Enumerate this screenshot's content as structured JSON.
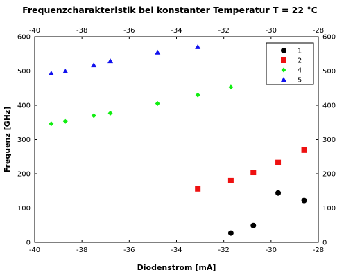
{
  "chart_data": {
    "type": "scatter",
    "title": "Frequenzcharakteristik bei konstanter Temperatur T = 22 °C",
    "xlabel": "Diodenstrom [mA]",
    "ylabel": "Frequenz [GHz]",
    "xlim": [
      -40,
      -28
    ],
    "ylim": [
      0,
      600
    ],
    "x_ticks": [
      -40,
      -38,
      -36,
      -34,
      -32,
      -30,
      -28
    ],
    "y_ticks": [
      0,
      100,
      200,
      300,
      400,
      500,
      600
    ],
    "mirror_axes": true,
    "grid": false,
    "legend_position": "top-right",
    "series": [
      {
        "name": "1",
        "marker": "circle",
        "color": "#000000",
        "x": [
          -31.7,
          -30.75,
          -29.7,
          -28.6
        ],
        "y": [
          27,
          49,
          144,
          122
        ]
      },
      {
        "name": "2",
        "marker": "square",
        "color": "#ee1111",
        "x": [
          -33.1,
          -31.7,
          -30.75,
          -29.7,
          -28.6
        ],
        "y": [
          156,
          180,
          204,
          233,
          269
        ]
      },
      {
        "name": "4",
        "marker": "diamond",
        "color": "#11ee11",
        "x": [
          -39.3,
          -38.7,
          -37.5,
          -36.8,
          -34.8,
          -33.1,
          -31.7
        ],
        "y": [
          346,
          353,
          370,
          377,
          405,
          430,
          453
        ]
      },
      {
        "name": "5",
        "marker": "triangle",
        "color": "#1111ee",
        "x": [
          -39.3,
          -38.7,
          -37.5,
          -36.8,
          -34.8,
          -33.1
        ],
        "y": [
          493,
          499,
          517,
          529,
          554,
          570
        ]
      }
    ]
  }
}
